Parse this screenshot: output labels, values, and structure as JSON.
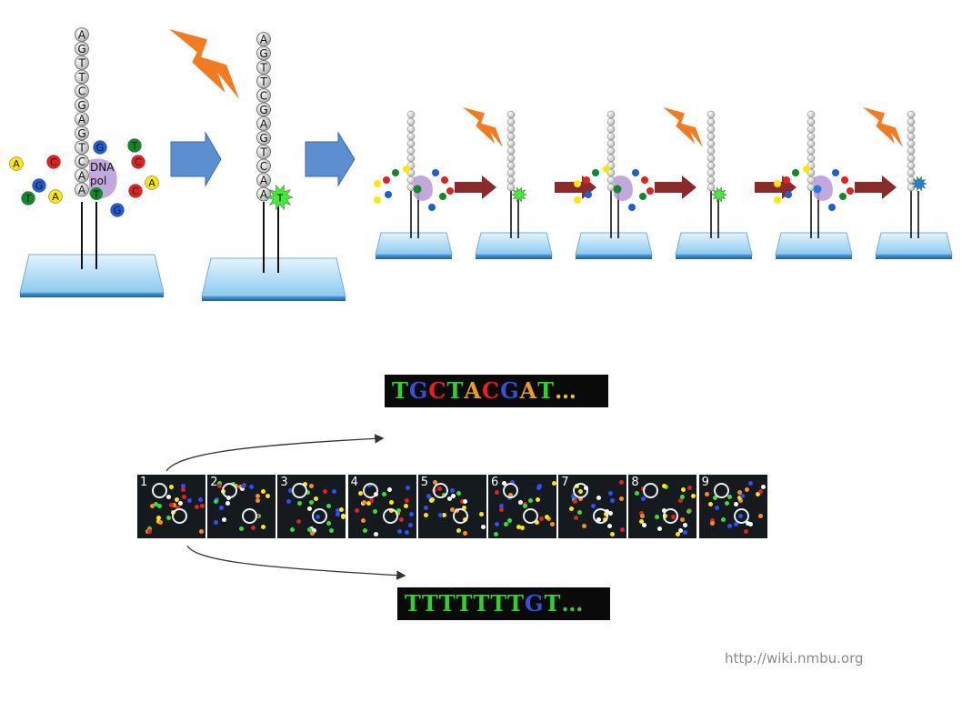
{
  "strand_sequence": [
    "A",
    "G",
    "T",
    "T",
    "C",
    "G",
    "A",
    "G",
    "T",
    "C",
    "A",
    "A"
  ],
  "step1": {
    "enzyme_label_line1": "DNA",
    "enzyme_label_line2": "pol",
    "incorporated_base": "T",
    "free_nucleotides": [
      {
        "base": "A",
        "color": "#ffe800"
      },
      {
        "base": "C",
        "color": "#e62020"
      },
      {
        "base": "G",
        "color": "#1a5fd8"
      },
      {
        "base": "T",
        "color": "#0f8a2a"
      },
      {
        "base": "A",
        "color": "#ffe800"
      },
      {
        "base": "G",
        "color": "#1a5fd8"
      },
      {
        "base": "T",
        "color": "#0f8a2a"
      },
      {
        "base": "C",
        "color": "#e62020"
      },
      {
        "base": "C",
        "color": "#e62020"
      },
      {
        "base": "A",
        "color": "#ffe800"
      },
      {
        "base": "G",
        "color": "#1a5fd8"
      }
    ]
  },
  "step2": {
    "incorporated_base": "T"
  },
  "colors": {
    "flash": "#f47a20",
    "arrow_blue": "#5b8fd0",
    "arrow_red": "#8b2a2a",
    "slide_top": "#cce8f8",
    "slide_side": "#3a8fd0",
    "signal_green": "#49e83a",
    "signal_blue": "#2a78e8",
    "enzyme": "#b79ad6"
  },
  "cycle_signals": [
    "green",
    "green",
    "blue"
  ],
  "reads": {
    "top": [
      {
        "b": "T",
        "c": "#2fd12f"
      },
      {
        "b": "G",
        "c": "#3a4fd8"
      },
      {
        "b": "C",
        "c": "#e62020"
      },
      {
        "b": "T",
        "c": "#2fd12f"
      },
      {
        "b": "A",
        "c": "#e6a020"
      },
      {
        "b": "C",
        "c": "#e62020"
      },
      {
        "b": "G",
        "c": "#3a4fd8"
      },
      {
        "b": "A",
        "c": "#e6a020"
      },
      {
        "b": "T",
        "c": "#2fd12f"
      },
      {
        "b": "…",
        "c": "#e6c020"
      }
    ],
    "bottom": [
      {
        "b": "T",
        "c": "#2fd12f"
      },
      {
        "b": "T",
        "c": "#2fd12f"
      },
      {
        "b": "T",
        "c": "#2fd12f"
      },
      {
        "b": "T",
        "c": "#2fd12f"
      },
      {
        "b": "T",
        "c": "#2fd12f"
      },
      {
        "b": "T",
        "c": "#2fd12f"
      },
      {
        "b": "T",
        "c": "#2fd12f"
      },
      {
        "b": "G",
        "c": "#3a4fd8"
      },
      {
        "b": "T",
        "c": "#2fd12f"
      },
      {
        "b": "…",
        "c": "#2fd12f"
      }
    ]
  },
  "panels": [
    "1",
    "2",
    "3",
    "4",
    "5",
    "6",
    "7",
    "8",
    "9"
  ],
  "credit": "http://wiki.nmbu.org"
}
